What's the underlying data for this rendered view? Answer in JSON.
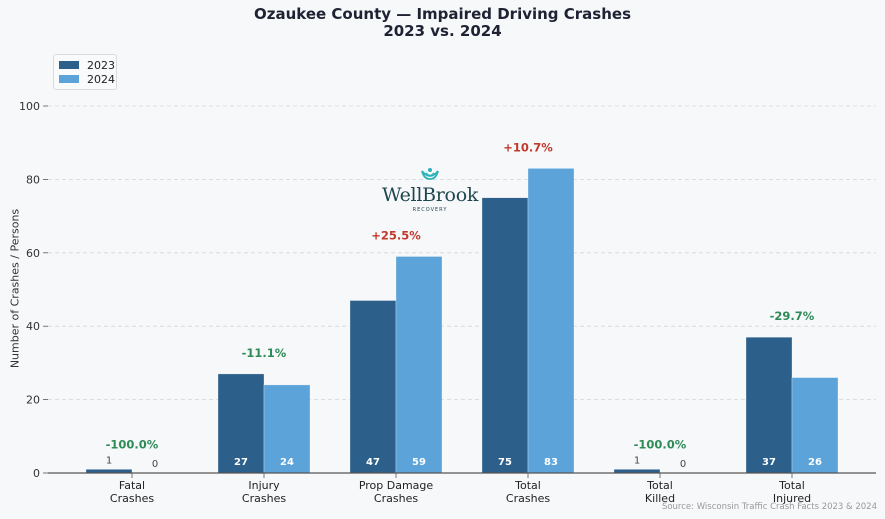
{
  "chart_data": {
    "type": "bar",
    "title": "Ozaukee County — Impaired Driving Crashes",
    "subtitle": "2023 vs. 2024",
    "xlabel": "",
    "ylabel": "Number of Crashes / Persons",
    "ylim": [
      0,
      100
    ],
    "yticks": [
      "0",
      "20",
      "40",
      "60",
      "80",
      "100"
    ],
    "grid": true,
    "legend_position": "top-left",
    "categories": [
      [
        "Fatal",
        "Crashes"
      ],
      [
        "Injury",
        "Crashes"
      ],
      [
        "Prop Damage",
        "Crashes"
      ],
      [
        "Total",
        "Crashes"
      ],
      [
        "Total",
        "Killed"
      ],
      [
        "Total",
        "Injured"
      ]
    ],
    "series": [
      {
        "name": "2023",
        "color": "#2c5f8a",
        "values": [
          1,
          27,
          47,
          75,
          1,
          37
        ]
      },
      {
        "name": "2024",
        "color": "#5ba3d9",
        "values": [
          0,
          24,
          59,
          83,
          0,
          26
        ]
      }
    ],
    "value_labels": [
      [
        "1",
        "0"
      ],
      [
        "27",
        "24"
      ],
      [
        "47",
        "59"
      ],
      [
        "75",
        "83"
      ],
      [
        "1",
        "0"
      ],
      [
        "37",
        "26"
      ]
    ],
    "pct_changes": [
      "-100.0%",
      "-11.1%",
      "+25.5%",
      "+10.7%",
      "-100.0%",
      "-29.7%"
    ],
    "pct_colors": {
      "increase": "#c0392b",
      "decrease": "#2e8b57"
    },
    "source": "Source: Wisconsin Traffic Crash Facts 2023 & 2024"
  },
  "logo": {
    "name": "WellBrook",
    "tagline": "RECOVERY",
    "accent": "#2bb3b8"
  }
}
